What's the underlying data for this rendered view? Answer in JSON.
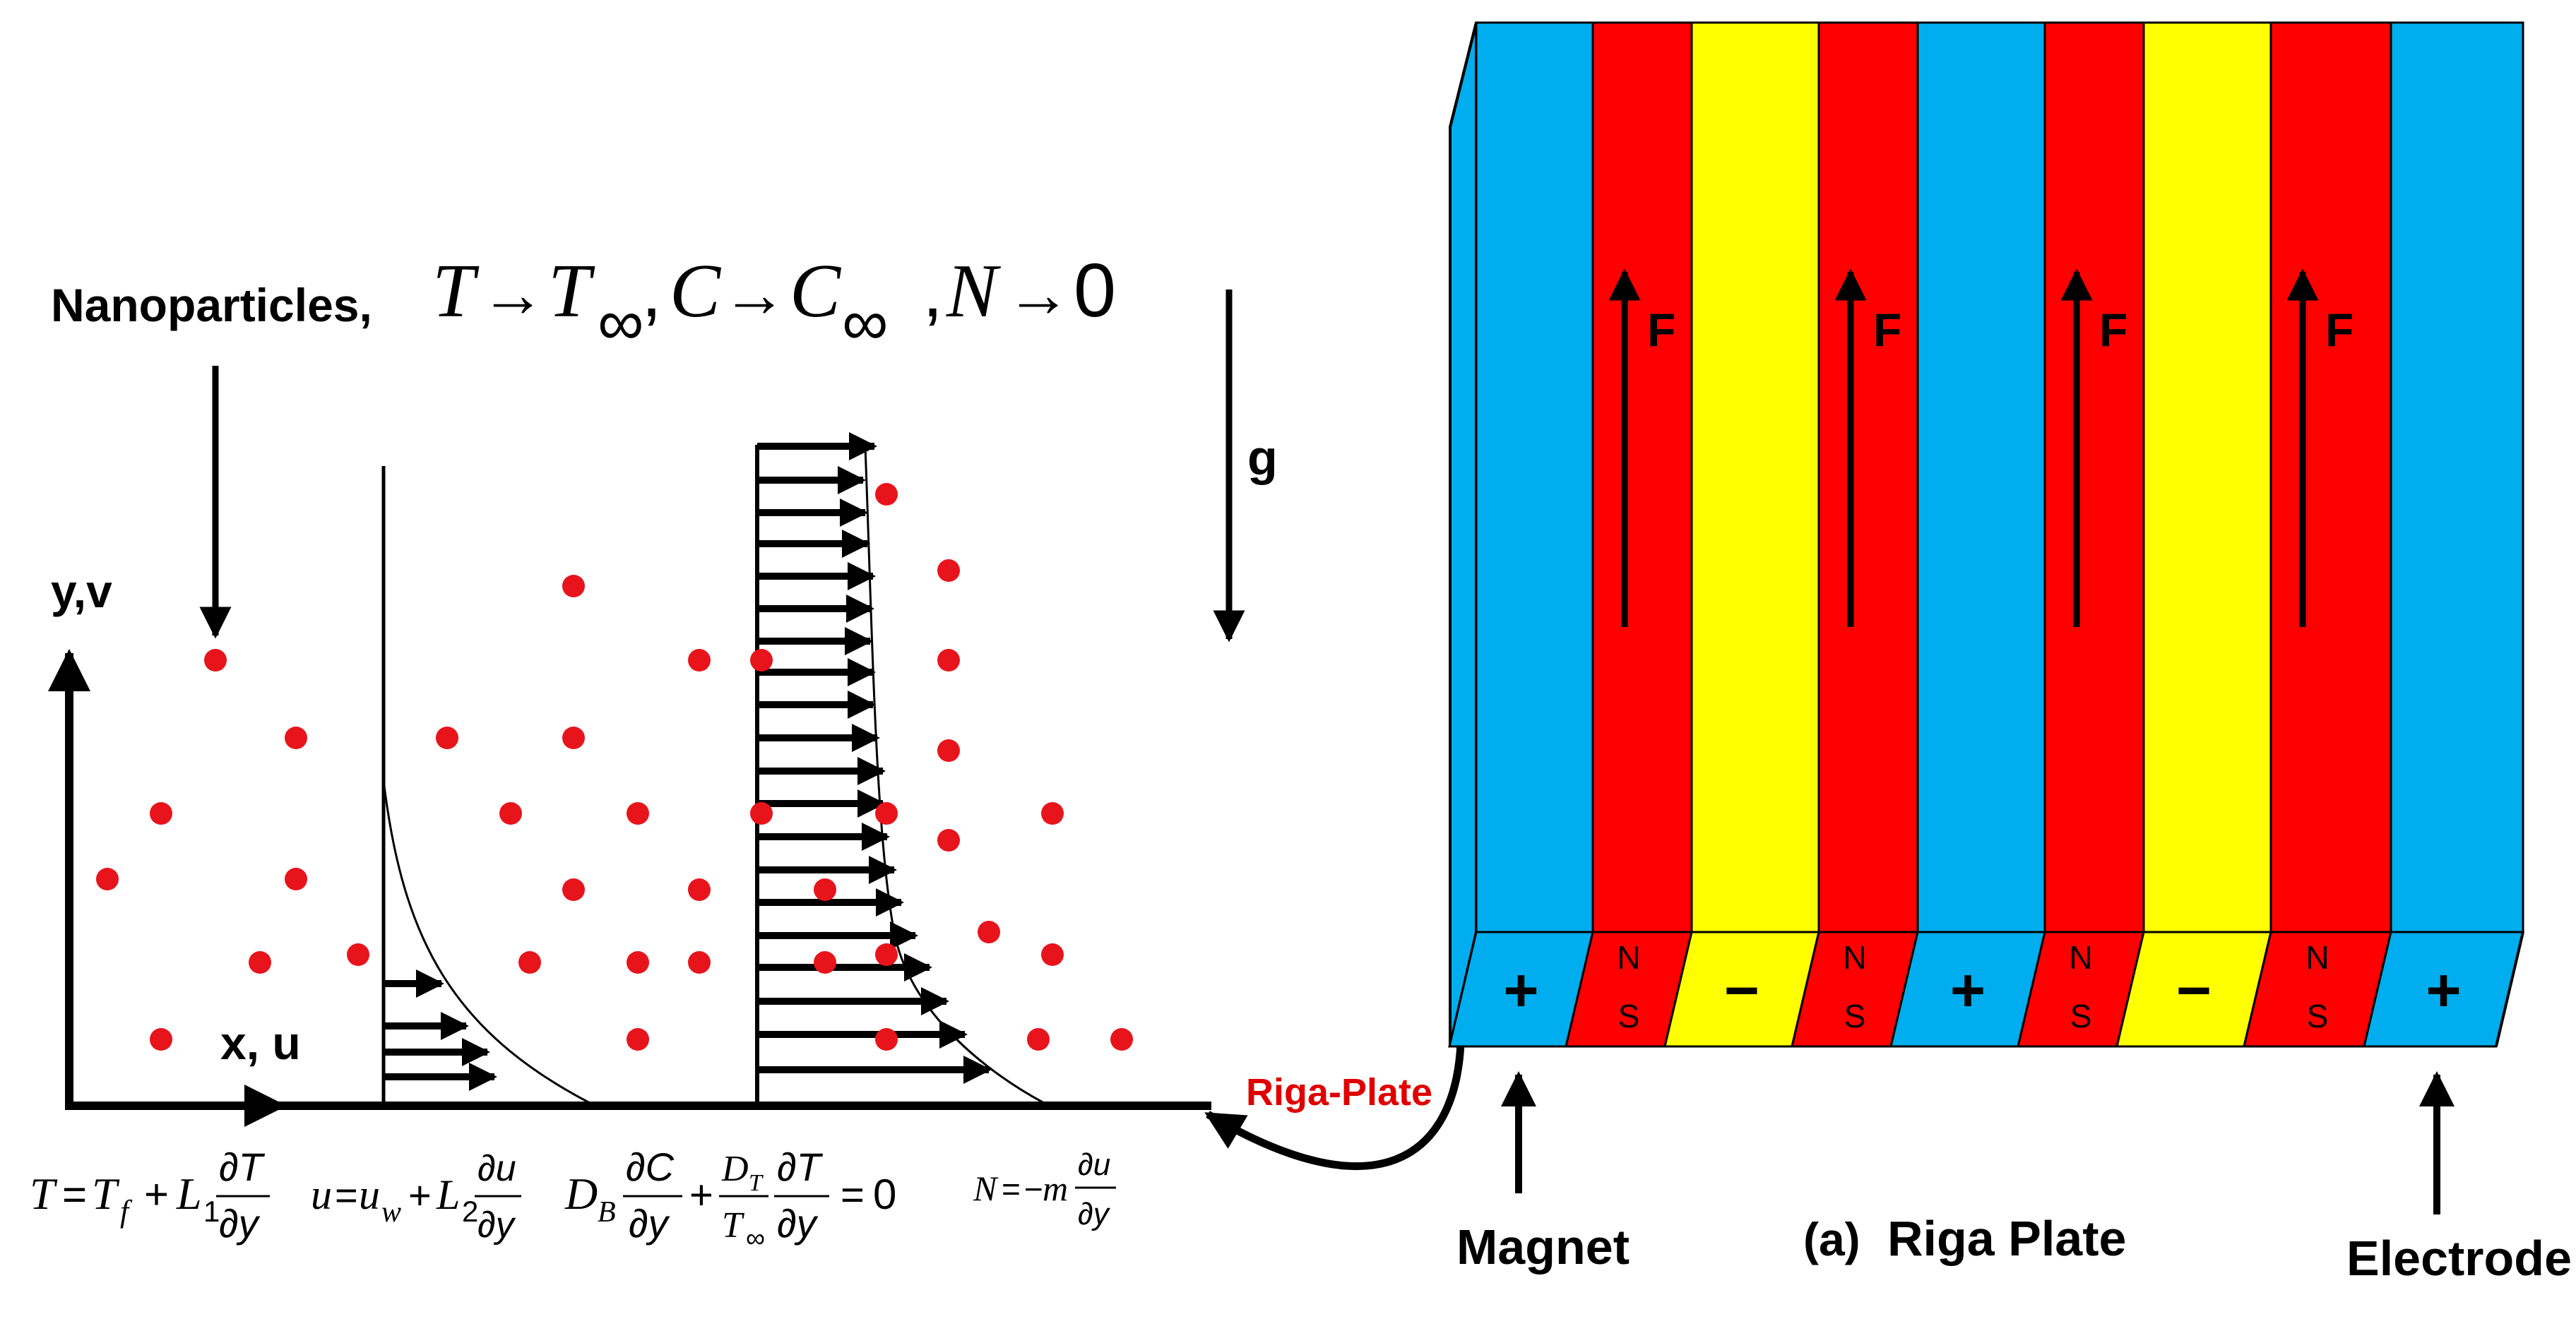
{
  "colors": {
    "blue": "#00AEEF",
    "red": "#FF0000",
    "yellow": "#FFFF00",
    "particle": "#E8141B",
    "black": "#000000",
    "riga_label": "#E00000"
  },
  "left_panel": {
    "nanoparticles_label": "Nanoparticles,",
    "far_field_condition": "T→T∞, C→C∞ ,N→0",
    "gravity_label": "g",
    "y_axis_label": "y,v",
    "x_axis_label": "x, u",
    "riga_plate_label": "Riga-Plate",
    "bc_temperature": "T = Tf + L1 ∂T/∂y",
    "bc_velocity": "u = uw + L2 ∂u/∂y",
    "bc_concentration": "DB ∂C/∂y + DT/T∞ ∂T/∂y = 0",
    "bc_microorganism": "N = −m ∂u/∂y"
  },
  "riga_plate": {
    "caption_prefix": "(a)",
    "caption": "Riga Plate",
    "magnet_label": "Magnet",
    "electrode_label": "Electrode",
    "force_label": "F",
    "strips": [
      {
        "color": "blue",
        "base": "+"
      },
      {
        "color": "red",
        "base_top": "N",
        "base_bottom": "S",
        "force": true
      },
      {
        "color": "yellow",
        "base": "−"
      },
      {
        "color": "red",
        "base_top": "N",
        "base_bottom": "S",
        "force": true
      },
      {
        "color": "blue",
        "base": "+"
      },
      {
        "color": "red",
        "base_top": "N",
        "base_bottom": "S",
        "force": true
      },
      {
        "color": "yellow",
        "base": "−"
      },
      {
        "color": "red",
        "base_top": "N",
        "base_bottom": "S",
        "force": true
      },
      {
        "color": "blue",
        "base": "+"
      }
    ]
  }
}
